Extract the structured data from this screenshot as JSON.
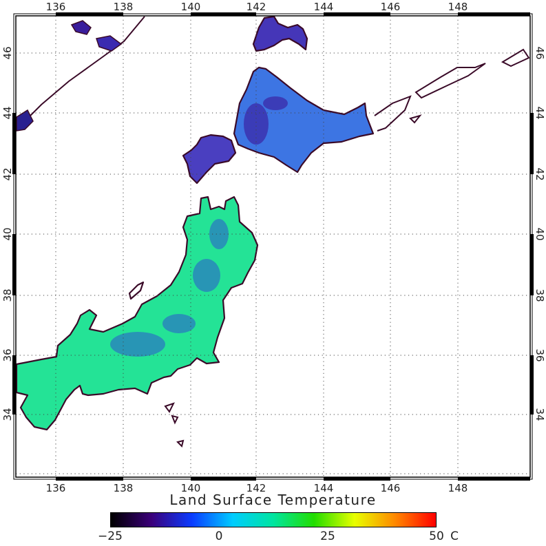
{
  "map": {
    "title": "Land Surface Temperature",
    "region": "Japan",
    "projection": "latitude-longitude",
    "lon_range": [
      134.8,
      150.2
    ],
    "lat_range": [
      31.9,
      47.1
    ],
    "lon_ticks": [
      "136",
      "138",
      "140",
      "142",
      "144",
      "146",
      "148"
    ],
    "lat_ticks": [
      "34",
      "36",
      "38",
      "40",
      "42",
      "44",
      "46"
    ],
    "gridlines": "dotted",
    "coastline_color": "#3a0a28",
    "land_fill_dominant": "#1fe89a",
    "north_fill": "#3c6fe0"
  },
  "colorbar": {
    "min": -25,
    "max": 50,
    "tick_values": [
      -25,
      0,
      25,
      50
    ],
    "tick_labels": [
      "−25",
      "0",
      "25",
      "50"
    ],
    "unit": "C",
    "colors": [
      "#000000",
      "#3b007a",
      "#0a3cff",
      "#00ccff",
      "#00e5a0",
      "#22dd00",
      "#e8ff00",
      "#ff8800",
      "#ff0000"
    ]
  }
}
